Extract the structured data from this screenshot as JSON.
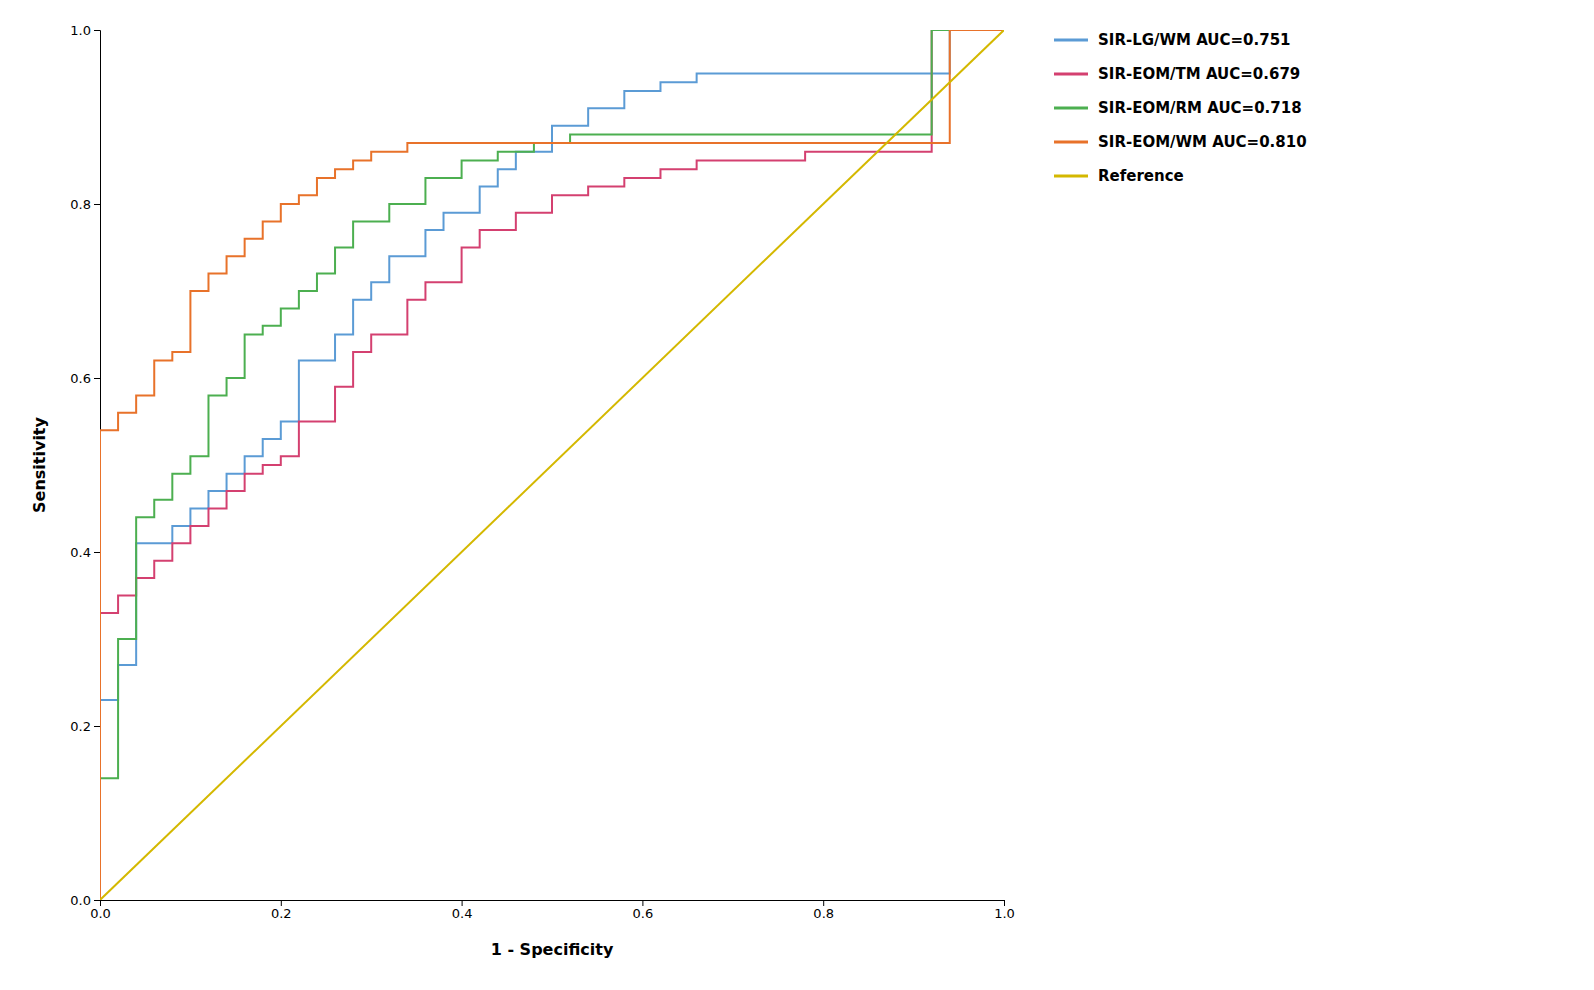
{
  "chart_data": {
    "type": "step",
    "xlabel": "1 - Specificity",
    "ylabel": "Sensitivity",
    "xlim": [
      0.0,
      1.0
    ],
    "ylim": [
      0.0,
      1.0
    ],
    "xticks": [
      {
        "value": 0.0,
        "label": "0.0"
      },
      0.2,
      0.4,
      0.6,
      0.8,
      {
        "value": 1.0,
        "label": "1.0"
      }
    ],
    "yticks": [
      {
        "value": 0.0,
        "label": "0.0"
      },
      0.2,
      0.4,
      0.6,
      0.8,
      {
        "value": 1.0,
        "label": "1.0"
      }
    ],
    "grid": false,
    "legend": "right",
    "series": [
      {
        "name": "SIR-LG/WM AUC=0.751",
        "color": "#5B9BD5",
        "x": [
          0.0,
          0.0,
          0.02,
          0.02,
          0.04,
          0.04,
          0.08,
          0.08,
          0.1,
          0.1,
          0.12,
          0.12,
          0.14,
          0.14,
          0.16,
          0.16,
          0.18,
          0.18,
          0.2,
          0.2,
          0.22,
          0.22,
          0.26,
          0.26,
          0.28,
          0.28,
          0.3,
          0.3,
          0.32,
          0.32,
          0.36,
          0.36,
          0.38,
          0.38,
          0.42,
          0.42,
          0.44,
          0.44,
          0.46,
          0.46,
          0.5,
          0.5,
          0.54,
          0.54,
          0.58,
          0.58,
          0.62,
          0.62,
          0.66,
          0.66,
          0.7,
          0.7,
          0.74,
          0.74,
          0.78,
          0.78,
          0.82,
          0.82,
          0.86,
          0.86,
          0.9,
          0.9,
          0.94,
          0.94,
          1.0
        ],
        "values": [
          0.0,
          0.23,
          0.23,
          0.27,
          0.27,
          0.41,
          0.41,
          0.43,
          0.43,
          0.45,
          0.45,
          0.47,
          0.47,
          0.49,
          0.49,
          0.51,
          0.51,
          0.53,
          0.53,
          0.55,
          0.55,
          0.62,
          0.62,
          0.65,
          0.65,
          0.69,
          0.69,
          0.71,
          0.71,
          0.74,
          0.74,
          0.77,
          0.77,
          0.79,
          0.79,
          0.82,
          0.82,
          0.84,
          0.84,
          0.86,
          0.86,
          0.89,
          0.89,
          0.91,
          0.91,
          0.93,
          0.93,
          0.94,
          0.94,
          0.95,
          0.95,
          0.95,
          0.95,
          0.95,
          0.95,
          0.95,
          0.95,
          0.95,
          0.95,
          0.95,
          0.95,
          0.95,
          0.95,
          1.0,
          1.0
        ]
      },
      {
        "name": "SIR-EOM/TM AUC=0.679",
        "color": "#D44070",
        "x": [
          0.0,
          0.0,
          0.02,
          0.02,
          0.04,
          0.04,
          0.06,
          0.06,
          0.08,
          0.08,
          0.1,
          0.1,
          0.12,
          0.12,
          0.14,
          0.14,
          0.16,
          0.16,
          0.18,
          0.18,
          0.2,
          0.2,
          0.22,
          0.22,
          0.26,
          0.26,
          0.28,
          0.28,
          0.3,
          0.3,
          0.34,
          0.34,
          0.36,
          0.36,
          0.4,
          0.4,
          0.42,
          0.42,
          0.46,
          0.46,
          0.5,
          0.5,
          0.54,
          0.54,
          0.58,
          0.58,
          0.62,
          0.62,
          0.66,
          0.66,
          0.7,
          0.7,
          0.74,
          0.74,
          0.78,
          0.78,
          0.82,
          0.82,
          0.86,
          0.86,
          0.92,
          0.92,
          0.96,
          0.96,
          1.0
        ],
        "values": [
          0.0,
          0.33,
          0.33,
          0.35,
          0.35,
          0.37,
          0.37,
          0.39,
          0.39,
          0.41,
          0.41,
          0.43,
          0.43,
          0.45,
          0.45,
          0.47,
          0.47,
          0.49,
          0.49,
          0.5,
          0.5,
          0.51,
          0.51,
          0.55,
          0.55,
          0.59,
          0.59,
          0.63,
          0.63,
          0.65,
          0.65,
          0.69,
          0.69,
          0.71,
          0.71,
          0.75,
          0.75,
          0.77,
          0.77,
          0.79,
          0.79,
          0.81,
          0.81,
          0.82,
          0.82,
          0.83,
          0.83,
          0.84,
          0.84,
          0.85,
          0.85,
          0.85,
          0.85,
          0.85,
          0.85,
          0.86,
          0.86,
          0.86,
          0.86,
          0.86,
          0.86,
          1.0,
          1.0,
          1.0,
          1.0
        ]
      },
      {
        "name": "SIR-EOM/RM AUC=0.718",
        "color": "#4CAF50",
        "x": [
          0.0,
          0.0,
          0.02,
          0.02,
          0.04,
          0.04,
          0.06,
          0.06,
          0.08,
          0.08,
          0.1,
          0.1,
          0.12,
          0.12,
          0.14,
          0.14,
          0.16,
          0.16,
          0.18,
          0.18,
          0.2,
          0.2,
          0.22,
          0.22,
          0.24,
          0.24,
          0.26,
          0.26,
          0.28,
          0.28,
          0.32,
          0.32,
          0.36,
          0.36,
          0.4,
          0.4,
          0.44,
          0.44,
          0.48,
          0.48,
          0.52,
          0.52,
          0.56,
          0.56,
          0.6,
          0.6,
          0.64,
          0.64,
          0.68,
          0.68,
          0.72,
          0.72,
          0.76,
          0.76,
          0.8,
          0.8,
          0.84,
          0.84,
          0.88,
          0.88,
          0.92,
          0.92,
          0.96,
          0.96,
          1.0
        ],
        "values": [
          0.0,
          0.14,
          0.14,
          0.3,
          0.3,
          0.44,
          0.44,
          0.46,
          0.46,
          0.49,
          0.49,
          0.51,
          0.51,
          0.58,
          0.58,
          0.6,
          0.6,
          0.65,
          0.65,
          0.66,
          0.66,
          0.68,
          0.68,
          0.7,
          0.7,
          0.72,
          0.72,
          0.75,
          0.75,
          0.78,
          0.78,
          0.8,
          0.8,
          0.83,
          0.83,
          0.85,
          0.85,
          0.86,
          0.86,
          0.87,
          0.87,
          0.88,
          0.88,
          0.88,
          0.88,
          0.88,
          0.88,
          0.88,
          0.88,
          0.88,
          0.88,
          0.88,
          0.88,
          0.88,
          0.88,
          0.88,
          0.88,
          0.88,
          0.88,
          0.88,
          0.88,
          1.0,
          1.0,
          1.0,
          1.0
        ]
      },
      {
        "name": "SIR-EOM/WM AUC=0.810",
        "color": "#E8722A",
        "x": [
          0.0,
          0.0,
          0.02,
          0.02,
          0.04,
          0.04,
          0.06,
          0.06,
          0.08,
          0.08,
          0.1,
          0.1,
          0.12,
          0.12,
          0.14,
          0.14,
          0.16,
          0.16,
          0.18,
          0.18,
          0.2,
          0.2,
          0.22,
          0.22,
          0.24,
          0.24,
          0.26,
          0.26,
          0.28,
          0.28,
          0.3,
          0.3,
          0.34,
          0.34,
          0.38,
          0.38,
          0.42,
          0.42,
          0.46,
          0.46,
          0.5,
          0.5,
          0.54,
          0.54,
          0.58,
          0.58,
          0.62,
          0.62,
          0.66,
          0.66,
          0.7,
          0.7,
          0.74,
          0.74,
          0.78,
          0.78,
          0.82,
          0.82,
          0.86,
          0.86,
          0.9,
          0.9,
          0.94,
          0.94,
          1.0
        ],
        "values": [
          0.0,
          0.54,
          0.54,
          0.56,
          0.56,
          0.58,
          0.58,
          0.62,
          0.62,
          0.63,
          0.63,
          0.7,
          0.7,
          0.72,
          0.72,
          0.74,
          0.74,
          0.76,
          0.76,
          0.78,
          0.78,
          0.8,
          0.8,
          0.81,
          0.81,
          0.83,
          0.83,
          0.84,
          0.84,
          0.85,
          0.85,
          0.86,
          0.86,
          0.87,
          0.87,
          0.87,
          0.87,
          0.87,
          0.87,
          0.87,
          0.87,
          0.87,
          0.87,
          0.87,
          0.87,
          0.87,
          0.87,
          0.87,
          0.87,
          0.87,
          0.87,
          0.87,
          0.87,
          0.87,
          0.87,
          0.87,
          0.87,
          0.87,
          0.87,
          0.87,
          0.87,
          0.87,
          0.87,
          1.0,
          1.0
        ]
      },
      {
        "name": "Reference",
        "color": "#D4B800",
        "type": "line",
        "x": [
          0,
          1
        ],
        "values": [
          0,
          1
        ]
      }
    ]
  }
}
